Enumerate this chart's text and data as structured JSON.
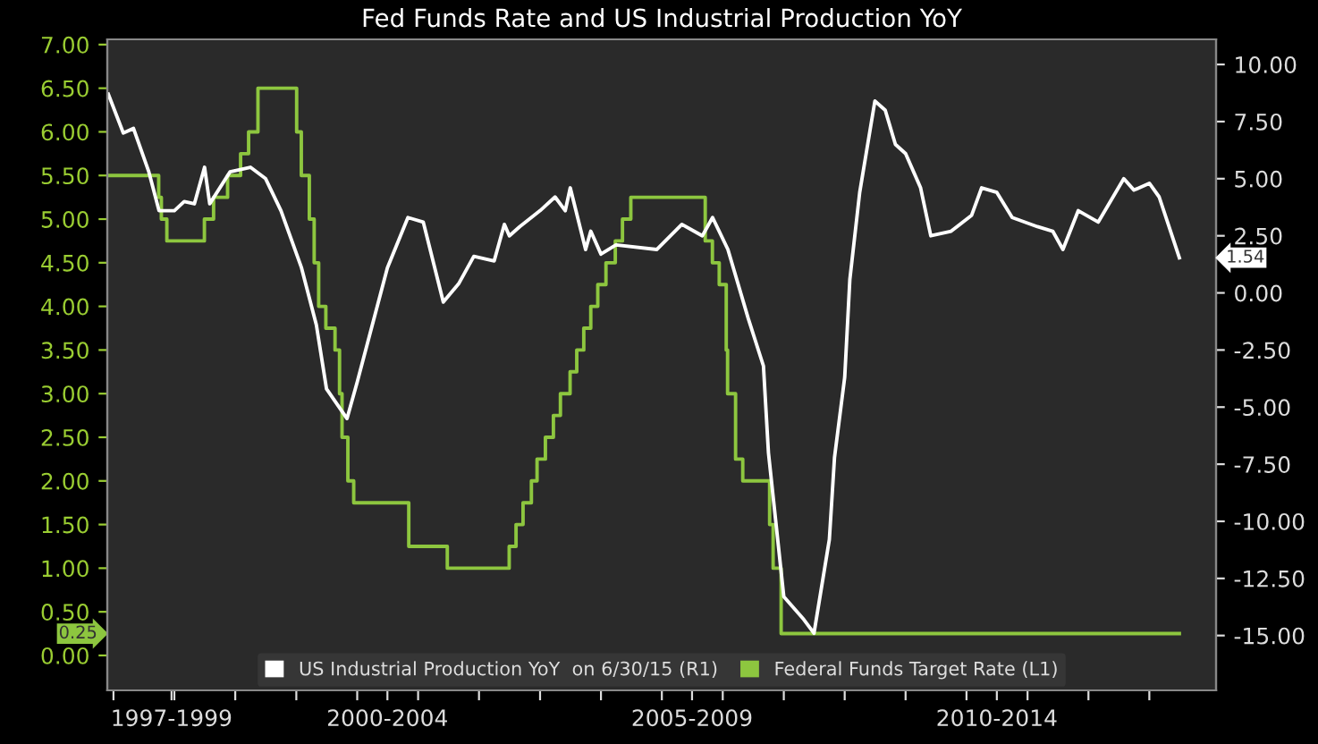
{
  "chart_data": {
    "type": "line",
    "title": "Fed Funds Rate and US Industrial Production YoY",
    "xlim": [
      "1997-11-25",
      "2016-02-05"
    ],
    "xticks": [
      {
        "value": "1998-01-01",
        "label": null
      },
      {
        "value": "1998-12-15",
        "label": "1997-1999"
      },
      {
        "value": "1999-01-01",
        "label": null
      },
      {
        "value": "2000-01-01",
        "label": null
      },
      {
        "value": "2001-01-01",
        "label": null
      },
      {
        "value": "2002-01-01",
        "label": null
      },
      {
        "value": "2002-07-01",
        "label": "2000-2004"
      },
      {
        "value": "2003-01-01",
        "label": null
      },
      {
        "value": "2004-01-01",
        "label": null
      },
      {
        "value": "2005-01-01",
        "label": null
      },
      {
        "value": "2006-01-01",
        "label": null
      },
      {
        "value": "2007-01-01",
        "label": null
      },
      {
        "value": "2007-07-01",
        "label": "2005-2009"
      },
      {
        "value": "2008-01-01",
        "label": null
      },
      {
        "value": "2009-01-01",
        "label": null
      },
      {
        "value": "2010-01-01",
        "label": null
      },
      {
        "value": "2011-01-01",
        "label": null
      },
      {
        "value": "2012-01-01",
        "label": null
      },
      {
        "value": "2012-07-01",
        "label": "2010-2014"
      },
      {
        "value": "2013-01-01",
        "label": null
      },
      {
        "value": "2014-01-01",
        "label": null
      },
      {
        "value": "2015-01-01",
        "label": null
      }
    ],
    "ylim": [
      -0.4,
      7.06
    ],
    "yticks": [
      {
        "value": 0,
        "label": "0.00"
      },
      {
        "value": 0.5,
        "label": "0.50"
      },
      {
        "value": 1,
        "label": "1.00"
      },
      {
        "value": 1.5,
        "label": "1.50"
      },
      {
        "value": 2,
        "label": "2.00"
      },
      {
        "value": 2.5,
        "label": "2.50"
      },
      {
        "value": 3,
        "label": "3.00"
      },
      {
        "value": 3.5,
        "label": "3.50"
      },
      {
        "value": 4,
        "label": "4.00"
      },
      {
        "value": 4.5,
        "label": "4.50"
      },
      {
        "value": 5,
        "label": "5.00"
      },
      {
        "value": 5.5,
        "label": "5.50"
      },
      {
        "value": 6,
        "label": "6.00"
      },
      {
        "value": 6.5,
        "label": "6.50"
      },
      {
        "value": 7,
        "label": "7.00"
      }
    ],
    "y2lim": [
      -17.4,
      11.1
    ],
    "y2ticks": [
      {
        "value": -15,
        "label": "-15.00"
      },
      {
        "value": -12.5,
        "label": "-12.50"
      },
      {
        "value": -10,
        "label": "-10.00"
      },
      {
        "value": -7.5,
        "label": "-7.50"
      },
      {
        "value": -5,
        "label": "-5.00"
      },
      {
        "value": -2.5,
        "label": "-2.50"
      },
      {
        "value": 0,
        "label": "0.00"
      },
      {
        "value": 2.5,
        "label": "2.50"
      },
      {
        "value": 5,
        "label": "5.00"
      },
      {
        "value": 7.5,
        "label": "7.50"
      },
      {
        "value": 10,
        "label": "10.00"
      }
    ],
    "grid": false,
    "legend": "bottom",
    "annotations": [
      "1.54",
      "0.25"
    ],
    "series": [
      {
        "name": "US Industrial Production YoY  on 6/30/15 (R1)",
        "axis": "y2",
        "color": "#ffffff",
        "x": [
          "1997-12",
          "1998-03",
          "1998-05",
          "1998-08",
          "1998-10",
          "1999-01",
          "1999-03",
          "1999-05",
          "1999-07",
          "1999-08",
          "1999-12",
          "2000-04",
          "2000-07",
          "2000-10",
          "2001-02",
          "2001-05",
          "2001-07",
          "2001-11",
          "2002-01",
          "2002-07",
          "2002-11",
          "2003-02",
          "2003-06",
          "2003-09",
          "2003-12",
          "2004-04",
          "2004-06",
          "2004-07",
          "2004-09",
          "2005-01",
          "2005-04",
          "2005-06",
          "2005-07",
          "2005-10",
          "2005-11",
          "2006-01",
          "2006-04",
          "2006-12",
          "2007-05",
          "2007-09",
          "2007-11",
          "2008-02",
          "2008-06",
          "2008-09",
          "2008-10",
          "2009-01",
          "2009-05",
          "2009-07",
          "2009-10",
          "2009-11",
          "2010-01",
          "2010-02",
          "2010-04",
          "2010-07",
          "2010-09",
          "2010-11",
          "2011-01",
          "2011-04",
          "2011-06",
          "2011-10",
          "2012-02",
          "2012-04",
          "2012-07",
          "2012-10",
          "2013-03",
          "2013-06",
          "2013-08",
          "2013-11",
          "2014-03",
          "2014-08",
          "2014-10",
          "2015-01",
          "2015-03",
          "2015-06-30"
        ],
        "values": [
          8.7,
          7.0,
          7.2,
          5.3,
          3.6,
          3.6,
          4.0,
          3.9,
          5.5,
          3.9,
          5.3,
          5.5,
          5.0,
          3.6,
          1.1,
          -1.4,
          -4.2,
          -5.5,
          -3.9,
          1.1,
          3.3,
          3.1,
          -0.4,
          0.4,
          1.6,
          1.4,
          3.0,
          2.5,
          2.9,
          3.6,
          4.2,
          3.6,
          4.6,
          1.9,
          2.7,
          1.7,
          2.1,
          1.9,
          3.0,
          2.5,
          3.3,
          1.9,
          -1.1,
          -3.2,
          -7.0,
          -13.3,
          -14.3,
          -14.9,
          -10.8,
          -7.2,
          -3.7,
          0.6,
          4.4,
          8.4,
          8.0,
          6.5,
          6.1,
          4.6,
          2.5,
          2.7,
          3.4,
          4.6,
          4.4,
          3.3,
          2.9,
          2.7,
          1.9,
          3.6,
          3.1,
          5.0,
          4.5,
          4.8,
          4.2,
          1.54
        ]
      },
      {
        "name": "Federal Funds Target Rate (L1)",
        "type": "step",
        "axis": "y",
        "color": "#8dc63f",
        "x": [
          "1997-11-25",
          "1998-09-29",
          "1998-10-15",
          "1998-11-17",
          "1999-06-30",
          "1999-08-24",
          "1999-11-16",
          "2000-02-02",
          "2000-03-21",
          "2000-05-16",
          "2001-01-03",
          "2001-01-31",
          "2001-03-20",
          "2001-04-18",
          "2001-05-15",
          "2001-06-27",
          "2001-08-21",
          "2001-09-17",
          "2001-10-02",
          "2001-11-06",
          "2001-12-11",
          "2002-11-06",
          "2003-06-25",
          "2004-06-30",
          "2004-08-10",
          "2004-09-21",
          "2004-11-10",
          "2004-12-14",
          "2005-02-02",
          "2005-03-22",
          "2005-05-03",
          "2005-06-30",
          "2005-08-09",
          "2005-09-20",
          "2005-11-01",
          "2005-12-13",
          "2006-01-31",
          "2006-03-28",
          "2006-05-10",
          "2006-06-29",
          "2007-09-18",
          "2007-10-31",
          "2007-12-11",
          "2008-01-22",
          "2008-01-30",
          "2008-03-18",
          "2008-04-30",
          "2008-10-08",
          "2008-10-29",
          "2008-12-16",
          "2015-06-30"
        ],
        "values": [
          5.5,
          5.25,
          5.0,
          4.75,
          5.0,
          5.25,
          5.5,
          5.75,
          6.0,
          6.5,
          6.0,
          5.5,
          5.0,
          4.5,
          4.0,
          3.75,
          3.5,
          3.0,
          2.5,
          2.0,
          1.75,
          1.25,
          1.0,
          1.25,
          1.5,
          1.75,
          2.0,
          2.25,
          2.5,
          2.75,
          3.0,
          3.25,
          3.5,
          3.75,
          4.0,
          4.25,
          4.5,
          4.75,
          5.0,
          5.25,
          4.75,
          4.5,
          4.25,
          3.5,
          3.0,
          2.25,
          2.0,
          1.5,
          1.0,
          0.25,
          0.25
        ]
      }
    ]
  }
}
